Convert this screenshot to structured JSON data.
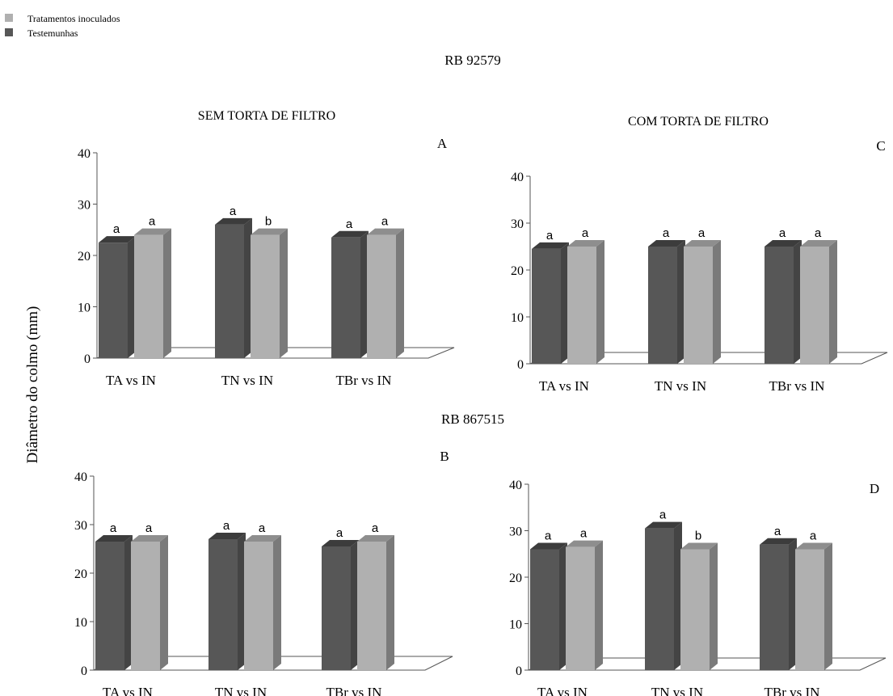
{
  "legend": {
    "items": [
      {
        "label": "Tratamentos inoculados",
        "color": "#b0b0b0"
      },
      {
        "label": "Testemunhas",
        "color": "#575757"
      }
    ]
  },
  "ylabel": "Diâmetro do colmo (mm)",
  "groups": [
    {
      "title": "RB 92579"
    },
    {
      "title": "RB 867515"
    }
  ],
  "colors": {
    "testemunha_front": "#575757",
    "testemunha_top": "#3c3c3c",
    "testemunha_side": "#444444",
    "inoculado_front": "#b0b0b0",
    "inoculado_top": "#8e8e8e",
    "inoculado_side": "#7a7a7a",
    "axis": "#555555"
  },
  "chart_data": [
    {
      "type": "bar",
      "panel_letter": "A",
      "title": "SEM TORTA DE FILTRO",
      "categories": [
        "TA vs IN",
        "TN vs IN",
        "TBr vs IN"
      ],
      "ylim": [
        0,
        40
      ],
      "yticks": [
        0,
        10,
        20,
        30,
        40
      ],
      "series": [
        {
          "name": "Testemunhas",
          "values": [
            22.5,
            26,
            23.5
          ],
          "letters": [
            "a",
            "a",
            "a"
          ]
        },
        {
          "name": "Tratamentos inoculados",
          "values": [
            24,
            24,
            24
          ],
          "letters": [
            "a",
            "b",
            "a"
          ]
        }
      ]
    },
    {
      "type": "bar",
      "panel_letter": "C",
      "title": "COM TORTA DE FILTRO",
      "categories": [
        "TA vs IN",
        "TN vs IN",
        "TBr vs IN"
      ],
      "ylim": [
        0,
        40
      ],
      "yticks": [
        0,
        10,
        20,
        30,
        40
      ],
      "series": [
        {
          "name": "Testemunhas",
          "values": [
            24.5,
            25,
            25
          ],
          "letters": [
            "a",
            "a",
            "a"
          ]
        },
        {
          "name": "Tratamentos inoculados",
          "values": [
            25,
            25,
            25
          ],
          "letters": [
            "a",
            "a",
            "a"
          ]
        }
      ]
    },
    {
      "type": "bar",
      "panel_letter": "B",
      "title": "",
      "categories": [
        "TA vs IN",
        "TN vs IN",
        "TBr vs IN"
      ],
      "ylim": [
        0,
        40
      ],
      "yticks": [
        0,
        10,
        20,
        30,
        40
      ],
      "series": [
        {
          "name": "Testemunhas",
          "values": [
            26.5,
            27,
            25.5
          ],
          "letters": [
            "a",
            "a",
            "a"
          ]
        },
        {
          "name": "Tratamentos inoculados",
          "values": [
            26.5,
            26.5,
            26.5
          ],
          "letters": [
            "a",
            "a",
            "a"
          ]
        }
      ]
    },
    {
      "type": "bar",
      "panel_letter": "D",
      "title": "",
      "categories": [
        "TA vs IN",
        "TN vs IN",
        "TBr vs IN"
      ],
      "ylim": [
        0,
        40
      ],
      "yticks": [
        0,
        10,
        20,
        30,
        40
      ],
      "series": [
        {
          "name": "Testemunhas",
          "values": [
            26,
            30.5,
            27
          ],
          "letters": [
            "a",
            "a",
            "a"
          ]
        },
        {
          "name": "Tratamentos inoculados",
          "values": [
            26.5,
            26,
            26
          ],
          "letters": [
            "a",
            "b",
            "a"
          ]
        }
      ]
    }
  ]
}
